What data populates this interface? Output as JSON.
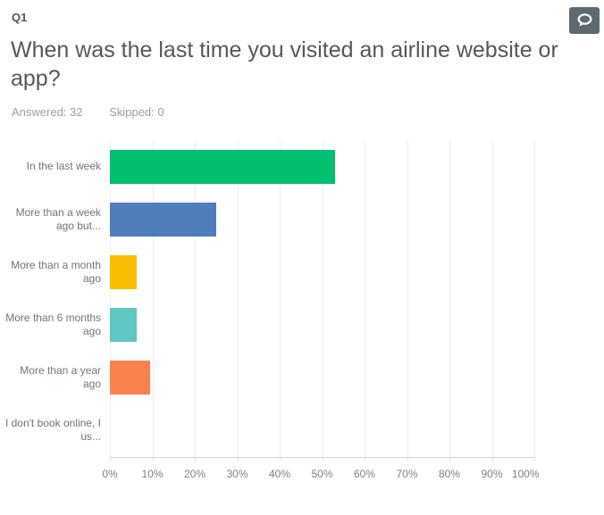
{
  "header": {
    "question_number": "Q1",
    "title": "When was the last time you visited an airline website or app?",
    "answered_label": "Answered: 32",
    "skipped_label": "Skipped: 0",
    "comment_button_color": "#5E6A71"
  },
  "chart_data": {
    "type": "bar",
    "orientation": "horizontal",
    "title": "",
    "categories": [
      "In the last week",
      "More than a week ago but...",
      "More than a month ago",
      "More than 6 months ago",
      "More than a year ago",
      "I don't book online, I us..."
    ],
    "values": [
      53.13,
      25,
      6.25,
      6.25,
      9.38,
      0
    ],
    "bar_colors": [
      "#00BF6F",
      "#4F7CBA",
      "#F9BE00",
      "#5FC6C3",
      "#F9814E",
      null
    ],
    "xlabel": "",
    "ylabel": "",
    "xlim": [
      0,
      100
    ],
    "tick_labels": [
      "0%",
      "10%",
      "20%",
      "30%",
      "40%",
      "50%",
      "60%",
      "70%",
      "80%",
      "90%",
      "100%"
    ],
    "grid": true,
    "grid_color": "#EDEDED",
    "axis_color": "#D6D8D9"
  }
}
